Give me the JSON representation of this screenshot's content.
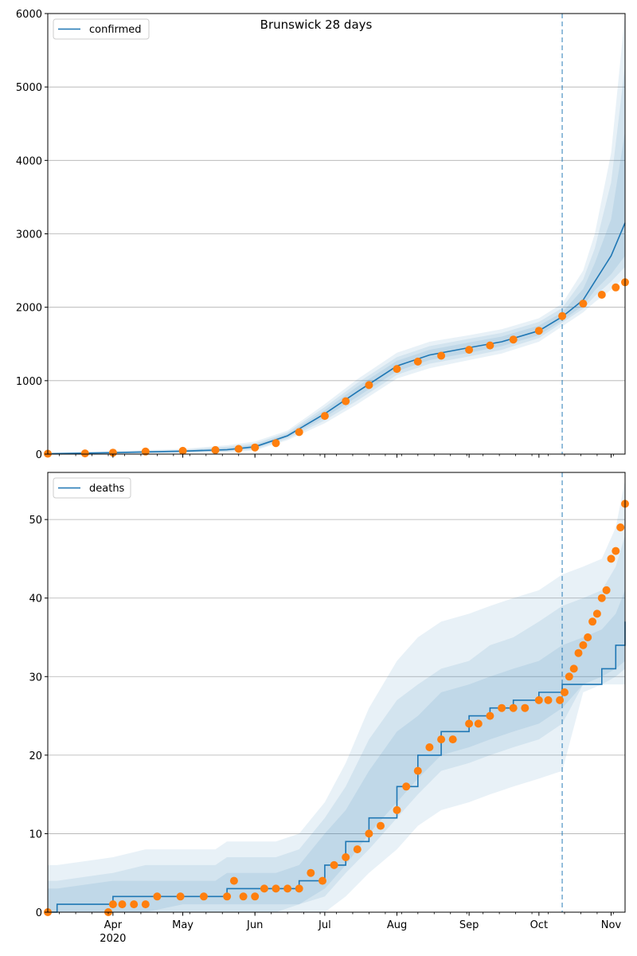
{
  "figure_title": "Brunswick 28 days",
  "colors": {
    "line": "#1f77b4",
    "points": "#ff7f0e",
    "band": "#1f77b4",
    "grid": "#b0b0b0"
  },
  "x_axis": {
    "month_labels": [
      "Apr",
      "May",
      "Jun",
      "Jul",
      "Aug",
      "Sep",
      "Oct",
      "Nov"
    ],
    "year_label": "2020"
  },
  "chart_data": [
    {
      "type": "line",
      "name": "confirmed-panel",
      "legend": "confirmed",
      "legend_position": "upper-left",
      "grid": "y-only",
      "x_range": [
        "2020-03-04",
        "2020-11-07"
      ],
      "ylim": [
        0,
        6000
      ],
      "yticks": [
        0,
        1000,
        2000,
        3000,
        4000,
        5000,
        6000
      ],
      "forecast_start": "2020-10-11",
      "model_line": {
        "x": [
          "2020-03-04",
          "2020-04-01",
          "2020-05-01",
          "2020-05-20",
          "2020-06-01",
          "2020-06-15",
          "2020-07-01",
          "2020-07-15",
          "2020-08-01",
          "2020-08-15",
          "2020-09-01",
          "2020-09-15",
          "2020-10-01",
          "2020-10-11",
          "2020-10-20",
          "2020-10-25",
          "2020-11-01",
          "2020-11-07"
        ],
        "y": [
          5,
          20,
          40,
          60,
          100,
          250,
          550,
          850,
          1200,
          1350,
          1450,
          1530,
          1680,
          1870,
          2100,
          2350,
          2700,
          3150
        ]
      },
      "observed": {
        "x": [
          "2020-03-04",
          "2020-03-20",
          "2020-04-01",
          "2020-04-15",
          "2020-05-01",
          "2020-05-15",
          "2020-05-25",
          "2020-06-01",
          "2020-06-10",
          "2020-06-20",
          "2020-07-01",
          "2020-07-10",
          "2020-07-20",
          "2020-08-01",
          "2020-08-10",
          "2020-08-20",
          "2020-09-01",
          "2020-09-10",
          "2020-09-20",
          "2020-10-01",
          "2020-10-11",
          "2020-10-20",
          "2020-10-28",
          "2020-11-03",
          "2020-11-07"
        ],
        "y": [
          5,
          10,
          20,
          35,
          45,
          55,
          70,
          90,
          150,
          300,
          520,
          720,
          940,
          1160,
          1260,
          1340,
          1420,
          1480,
          1560,
          1680,
          1880,
          2050,
          2170,
          2270,
          2340
        ]
      },
      "bands_upper": [
        [
          20,
          40,
          70,
          120,
          170,
          320,
          680,
          1020,
          1380,
          1530,
          1620,
          1700,
          1850,
          2050,
          2500,
          3000,
          4100,
          6000
        ],
        [
          15,
          32,
          58,
          100,
          145,
          295,
          640,
          970,
          1320,
          1470,
          1570,
          1650,
          1800,
          1990,
          2380,
          2800,
          3700,
          5300
        ],
        [
          10,
          27,
          50,
          85,
          125,
          275,
          600,
          920,
          1270,
          1420,
          1520,
          1600,
          1750,
          1930,
          2250,
          2600,
          3200,
          4400
        ]
      ],
      "bands_lower": [
        [
          0,
          5,
          15,
          25,
          50,
          190,
          420,
          680,
          1030,
          1170,
          1280,
          1370,
          1530,
          1740,
          1930,
          2070,
          2240,
          2420
        ],
        [
          0,
          10,
          22,
          35,
          65,
          210,
          460,
          730,
          1080,
          1230,
          1330,
          1420,
          1580,
          1790,
          1980,
          2150,
          2350,
          2550
        ],
        [
          2,
          14,
          30,
          45,
          80,
          230,
          500,
          780,
          1130,
          1280,
          1380,
          1470,
          1620,
          1820,
          2020,
          2230,
          2450,
          2700
        ]
      ]
    },
    {
      "type": "line",
      "name": "deaths-panel",
      "legend": "deaths",
      "legend_position": "upper-left",
      "grid": "y-only",
      "x_range": [
        "2020-03-04",
        "2020-11-07"
      ],
      "ylim": [
        0,
        56
      ],
      "yticks": [
        0,
        10,
        20,
        30,
        40,
        50
      ],
      "forecast_start": "2020-10-11",
      "model_line": {
        "x": [
          "2020-03-04",
          "2020-03-08",
          "2020-04-01",
          "2020-04-15",
          "2020-05-01",
          "2020-05-15",
          "2020-05-20",
          "2020-06-01",
          "2020-06-10",
          "2020-06-20",
          "2020-07-01",
          "2020-07-10",
          "2020-07-20",
          "2020-08-01",
          "2020-08-10",
          "2020-08-20",
          "2020-09-01",
          "2020-09-10",
          "2020-09-20",
          "2020-10-01",
          "2020-10-11",
          "2020-10-20",
          "2020-10-28",
          "2020-11-03",
          "2020-11-07"
        ],
        "y": [
          0,
          1,
          2,
          2,
          2,
          2,
          3,
          3,
          3,
          4,
          6,
          9,
          12,
          16,
          20,
          23,
          25,
          26,
          27,
          28,
          29,
          29,
          31,
          34,
          37
        ]
      },
      "observed": {
        "x": [
          "2020-03-04",
          "2020-03-30",
          "2020-04-01",
          "2020-04-05",
          "2020-04-10",
          "2020-04-15",
          "2020-04-20",
          "2020-04-30",
          "2020-05-10",
          "2020-05-20",
          "2020-05-23",
          "2020-05-27",
          "2020-06-01",
          "2020-06-05",
          "2020-06-10",
          "2020-06-15",
          "2020-06-20",
          "2020-06-25",
          "2020-06-30",
          "2020-07-05",
          "2020-07-10",
          "2020-07-15",
          "2020-07-20",
          "2020-07-25",
          "2020-08-01",
          "2020-08-05",
          "2020-08-10",
          "2020-08-15",
          "2020-08-20",
          "2020-08-25",
          "2020-09-01",
          "2020-09-05",
          "2020-09-10",
          "2020-09-15",
          "2020-09-20",
          "2020-09-25",
          "2020-10-01",
          "2020-10-05",
          "2020-10-10",
          "2020-10-12",
          "2020-10-14",
          "2020-10-16",
          "2020-10-18",
          "2020-10-20",
          "2020-10-22",
          "2020-10-24",
          "2020-10-26",
          "2020-10-28",
          "2020-10-30",
          "2020-11-01",
          "2020-11-03",
          "2020-11-05",
          "2020-11-07"
        ],
        "y": [
          0,
          0,
          1,
          1,
          1,
          1,
          2,
          2,
          2,
          2,
          4,
          2,
          2,
          3,
          3,
          3,
          3,
          5,
          4,
          6,
          7,
          8,
          10,
          11,
          13,
          16,
          18,
          21,
          22,
          22,
          24,
          24,
          25,
          26,
          26,
          26,
          27,
          27,
          27,
          28,
          30,
          31,
          33,
          34,
          35,
          37,
          38,
          40,
          41,
          45,
          46,
          49,
          52
        ]
      },
      "bands_upper": [
        [
          6,
          6,
          7,
          8,
          8,
          8,
          9,
          9,
          9,
          10,
          14,
          19,
          26,
          32,
          35,
          37,
          38,
          39,
          40,
          41,
          43,
          44,
          45,
          49,
          55
        ],
        [
          4,
          4,
          5,
          6,
          6,
          6,
          7,
          7,
          7,
          8,
          12,
          16,
          22,
          27,
          29,
          31,
          32,
          34,
          35,
          37,
          39,
          40,
          41,
          44,
          48
        ],
        [
          3,
          3,
          4,
          4,
          4,
          4,
          5,
          5,
          5,
          6,
          10,
          13,
          18,
          23,
          25,
          28,
          29,
          30,
          31,
          32,
          34,
          35,
          36,
          38,
          41
        ]
      ],
      "bands_lower": [
        [
          0,
          0,
          0,
          0,
          0,
          0,
          0,
          0,
          0,
          0,
          0,
          2,
          5,
          8,
          11,
          13,
          14,
          15,
          16,
          17,
          18,
          28,
          29,
          29,
          29
        ],
        [
          0,
          0,
          0,
          0,
          0,
          0,
          0,
          0,
          0,
          1,
          2,
          5,
          8,
          12,
          15,
          18,
          19,
          20,
          21,
          22,
          24,
          29,
          29,
          30,
          31
        ],
        [
          0,
          0,
          0,
          0,
          1,
          1,
          1,
          1,
          1,
          1,
          3,
          6,
          10,
          14,
          17,
          20,
          21,
          22,
          23,
          24,
          26,
          29,
          30,
          31,
          32
        ]
      ]
    }
  ]
}
